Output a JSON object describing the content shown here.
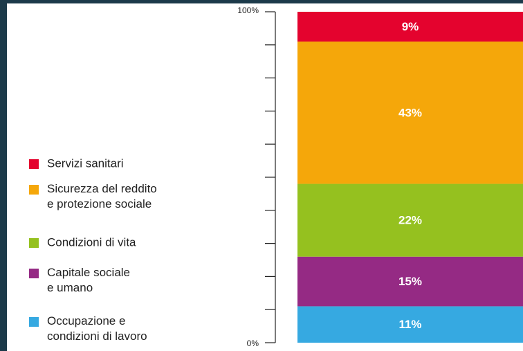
{
  "chart_data": {
    "type": "stacked_bar",
    "series": [
      {
        "name": "Occupazione e\ncondizioni di lavoro",
        "color": "#36a9e1",
        "values": [
          11
        ],
        "value_labels": [
          "11%"
        ]
      },
      {
        "name": "Capitale sociale\ne umano",
        "color": "#952a84",
        "values": [
          15
        ],
        "value_labels": [
          "15%"
        ]
      },
      {
        "name": "Condizioni di vita",
        "color": "#95c11f",
        "values": [
          22
        ],
        "value_labels": [
          "22%"
        ]
      },
      {
        "name": "Sicurezza del reddito\ne protezione sociale",
        "color": "#f5a70a",
        "values": [
          43
        ],
        "value_labels": [
          "43%"
        ]
      },
      {
        "name": "Servizi sanitari",
        "color": "#e4032e",
        "values": [
          9
        ],
        "value_labels": [
          "9%"
        ]
      }
    ],
    "ylim": [
      0,
      100
    ],
    "yticks": [
      {
        "value": 0,
        "label": "0%"
      },
      {
        "value": 100,
        "label": "100%"
      }
    ],
    "yticks_minor": [
      10,
      20,
      30,
      40,
      50,
      60,
      70,
      80,
      90
    ]
  }
}
